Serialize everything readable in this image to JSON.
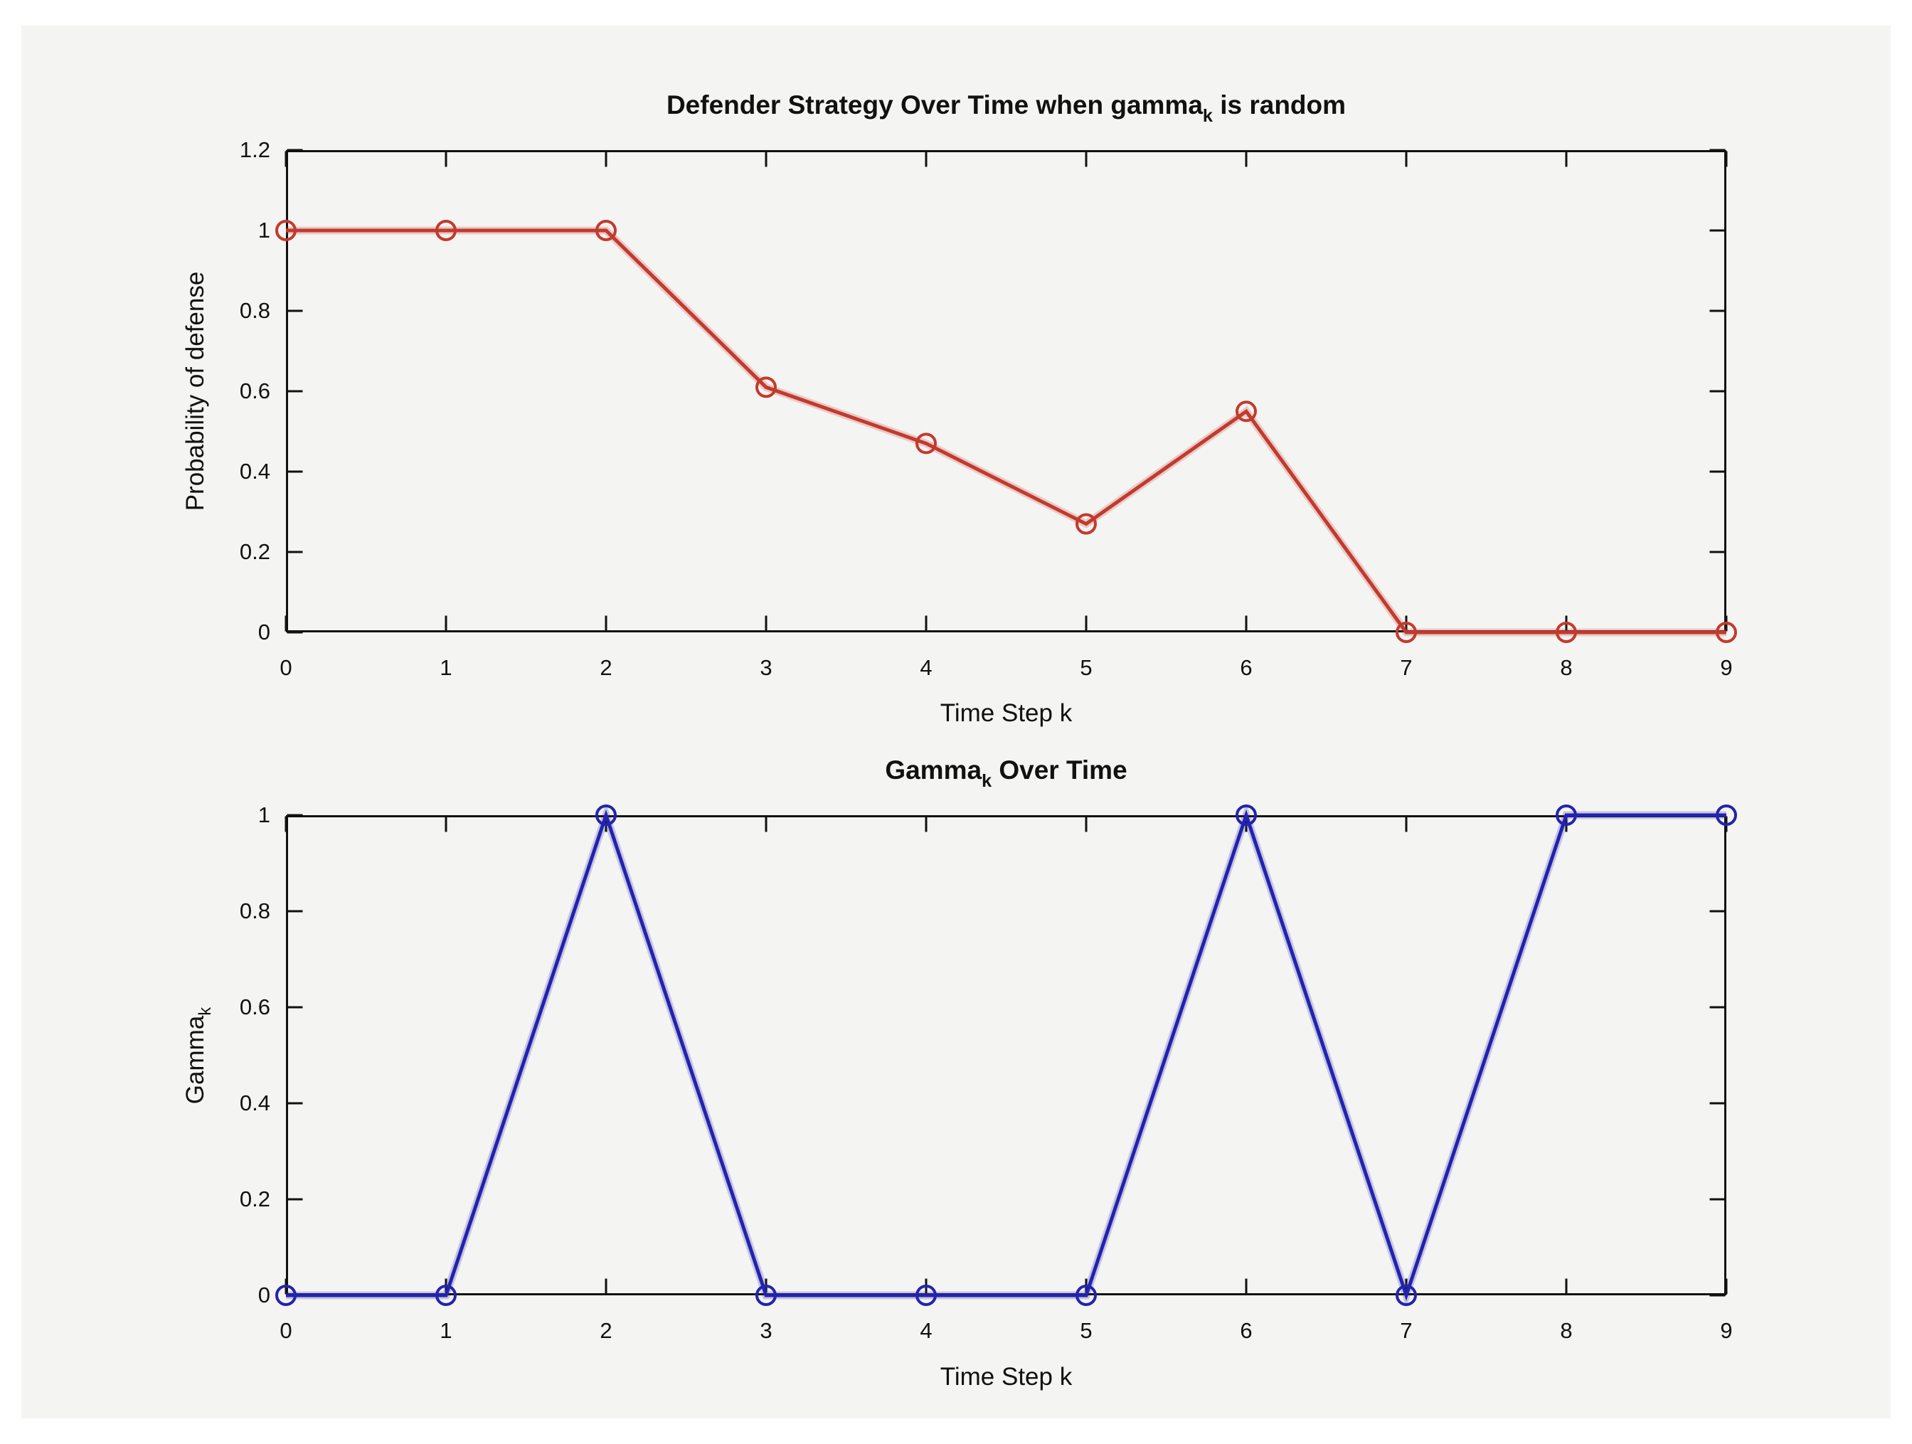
{
  "figure": {
    "margin_background": "#ffffff",
    "background": "#f4f4f2",
    "axis_color": "#111111"
  },
  "chart_data": [
    {
      "type": "line",
      "title": {
        "pre": "Defender Strategy Over Time when gamma",
        "sub": "k",
        "post": " is random"
      },
      "xlabel": "Time Step k",
      "ylabel": {
        "pre": "Probability of defense",
        "sub": "",
        "post": ""
      },
      "x": [
        0,
        1,
        2,
        3,
        4,
        5,
        6,
        7,
        8,
        9
      ],
      "values": [
        1,
        1,
        1,
        0.61,
        0.47,
        0.27,
        0.55,
        0,
        0,
        0
      ],
      "xlim": [
        0,
        9
      ],
      "ylim": [
        0,
        1.2
      ],
      "xticks": [
        0,
        1,
        2,
        3,
        4,
        5,
        6,
        7,
        8,
        9
      ],
      "xtick_labels": [
        "0",
        "1",
        "2",
        "3",
        "4",
        "5",
        "6",
        "7",
        "8",
        "9"
      ],
      "yticks": [
        0,
        0.2,
        0.4,
        0.6,
        0.8,
        1,
        1.2
      ],
      "ytick_labels": [
        "0",
        "0.2",
        "0.4",
        "0.6",
        "0.8",
        "1",
        "1.2"
      ],
      "line_color": "#c23a2e",
      "marker": "circle",
      "grid": false,
      "legend": null
    },
    {
      "type": "line",
      "title": {
        "pre": "Gamma",
        "sub": "k",
        "post": " Over Time"
      },
      "xlabel": "Time Step k",
      "ylabel": {
        "pre": "Gamma",
        "sub": "k",
        "post": ""
      },
      "x": [
        0,
        1,
        2,
        3,
        4,
        5,
        6,
        7,
        8,
        9
      ],
      "values": [
        0,
        0,
        1,
        0,
        0,
        0,
        1,
        0,
        1,
        1
      ],
      "xlim": [
        0,
        9
      ],
      "ylim": [
        0,
        1
      ],
      "xticks": [
        0,
        1,
        2,
        3,
        4,
        5,
        6,
        7,
        8,
        9
      ],
      "xtick_labels": [
        "0",
        "1",
        "2",
        "3",
        "4",
        "5",
        "6",
        "7",
        "8",
        "9"
      ],
      "yticks": [
        0,
        0.2,
        0.4,
        0.6,
        0.8,
        1
      ],
      "ytick_labels": [
        "0",
        "0.2",
        "0.4",
        "0.6",
        "0.8",
        "1"
      ],
      "line_color": "#2323ae",
      "marker": "circle",
      "grid": false,
      "legend": null
    }
  ]
}
